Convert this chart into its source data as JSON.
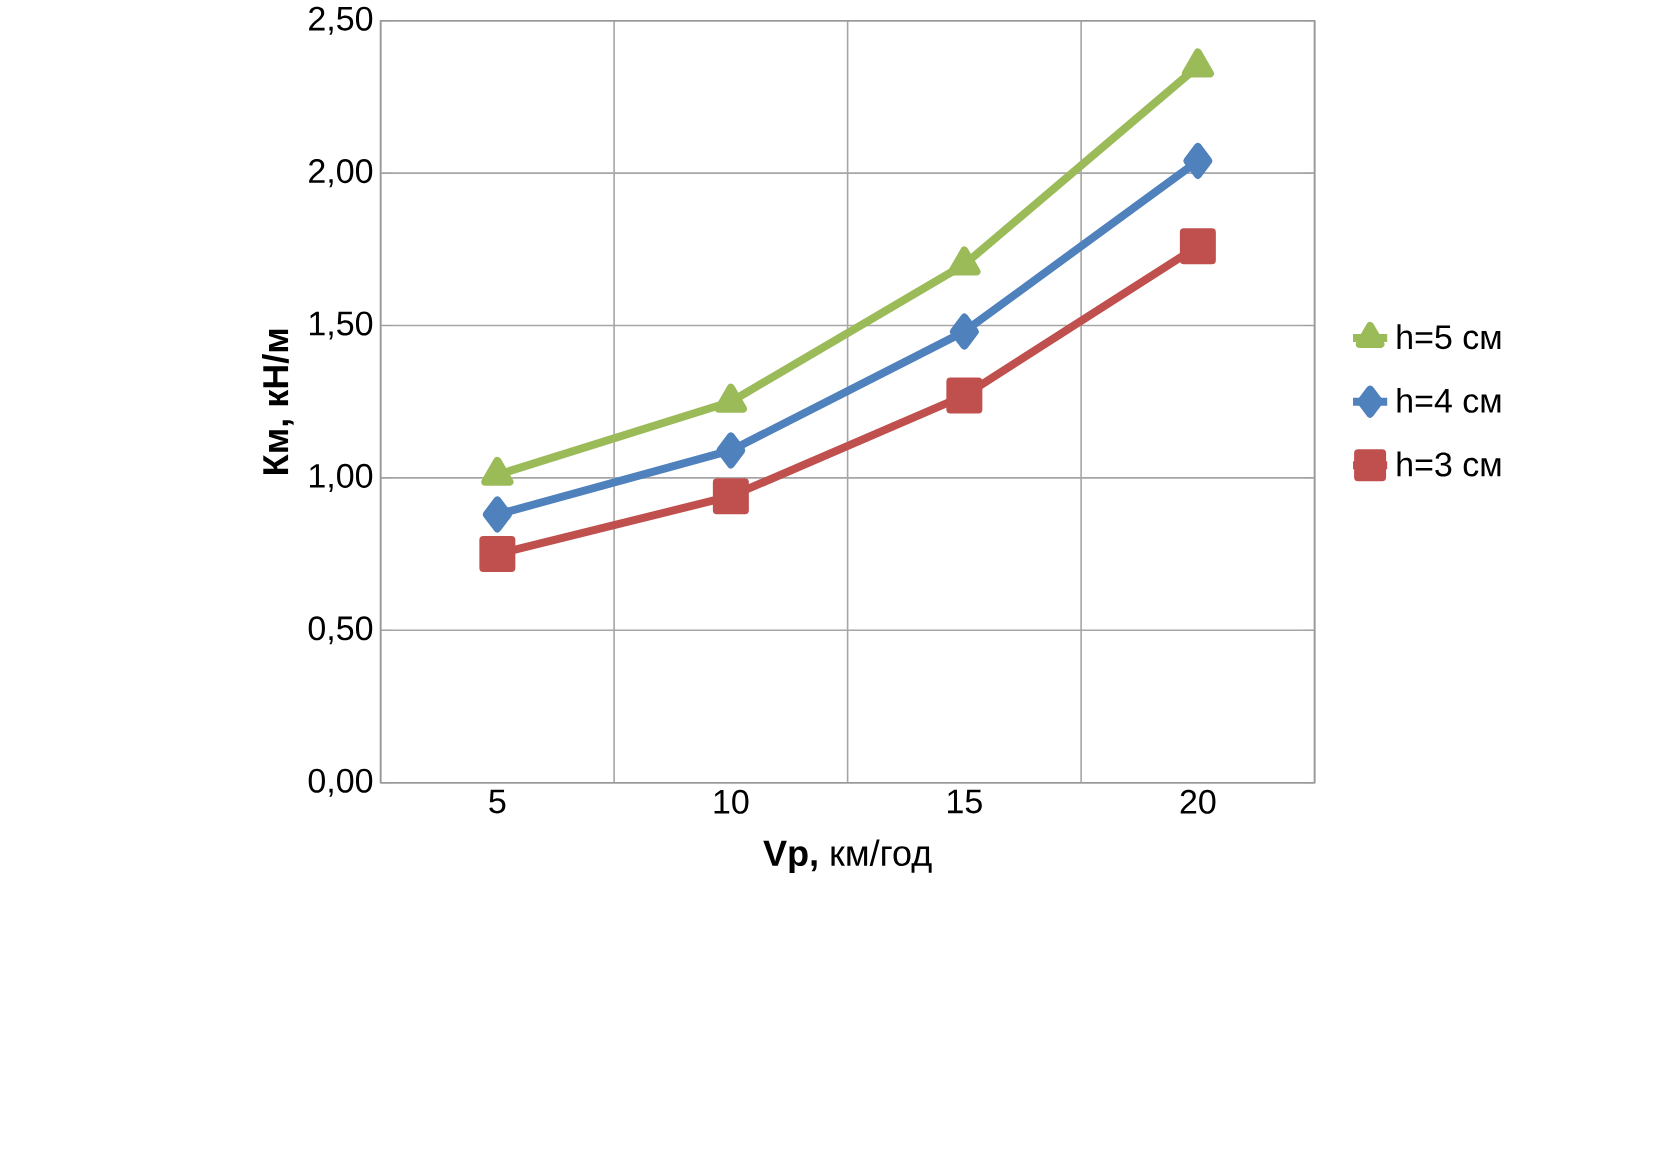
{
  "chart_data": {
    "type": "line",
    "xlabel": "**Vp,** км/год",
    "ylabel": "Км, кН/м",
    "categories": [
      "5",
      "10",
      "15",
      "20"
    ],
    "series": [
      {
        "name": "h=5 см",
        "color": "#9bbb59",
        "marker": "triangle",
        "values": [
          1.01,
          1.25,
          1.7,
          2.35
        ]
      },
      {
        "name": "h=4 см",
        "color": "#4f81bd",
        "marker": "diamond",
        "values": [
          0.88,
          1.09,
          1.48,
          2.04
        ]
      },
      {
        "name": "h=3 см",
        "color": "#c0504d",
        "marker": "square",
        "values": [
          0.75,
          0.94,
          1.27,
          1.76
        ]
      }
    ],
    "ylim": [
      0,
      2.5
    ],
    "yticks": [
      {
        "value": 0,
        "label": "0,00"
      },
      {
        "value": 0.5,
        "label": "0,50"
      },
      {
        "value": 1,
        "label": "1,00"
      },
      {
        "value": 1.5,
        "label": "1,50"
      },
      {
        "value": 2,
        "label": "2,00"
      },
      {
        "value": 2.5,
        "label": "2,50"
      }
    ],
    "grid": true,
    "legend": "right",
    "line_style": "solid"
  }
}
